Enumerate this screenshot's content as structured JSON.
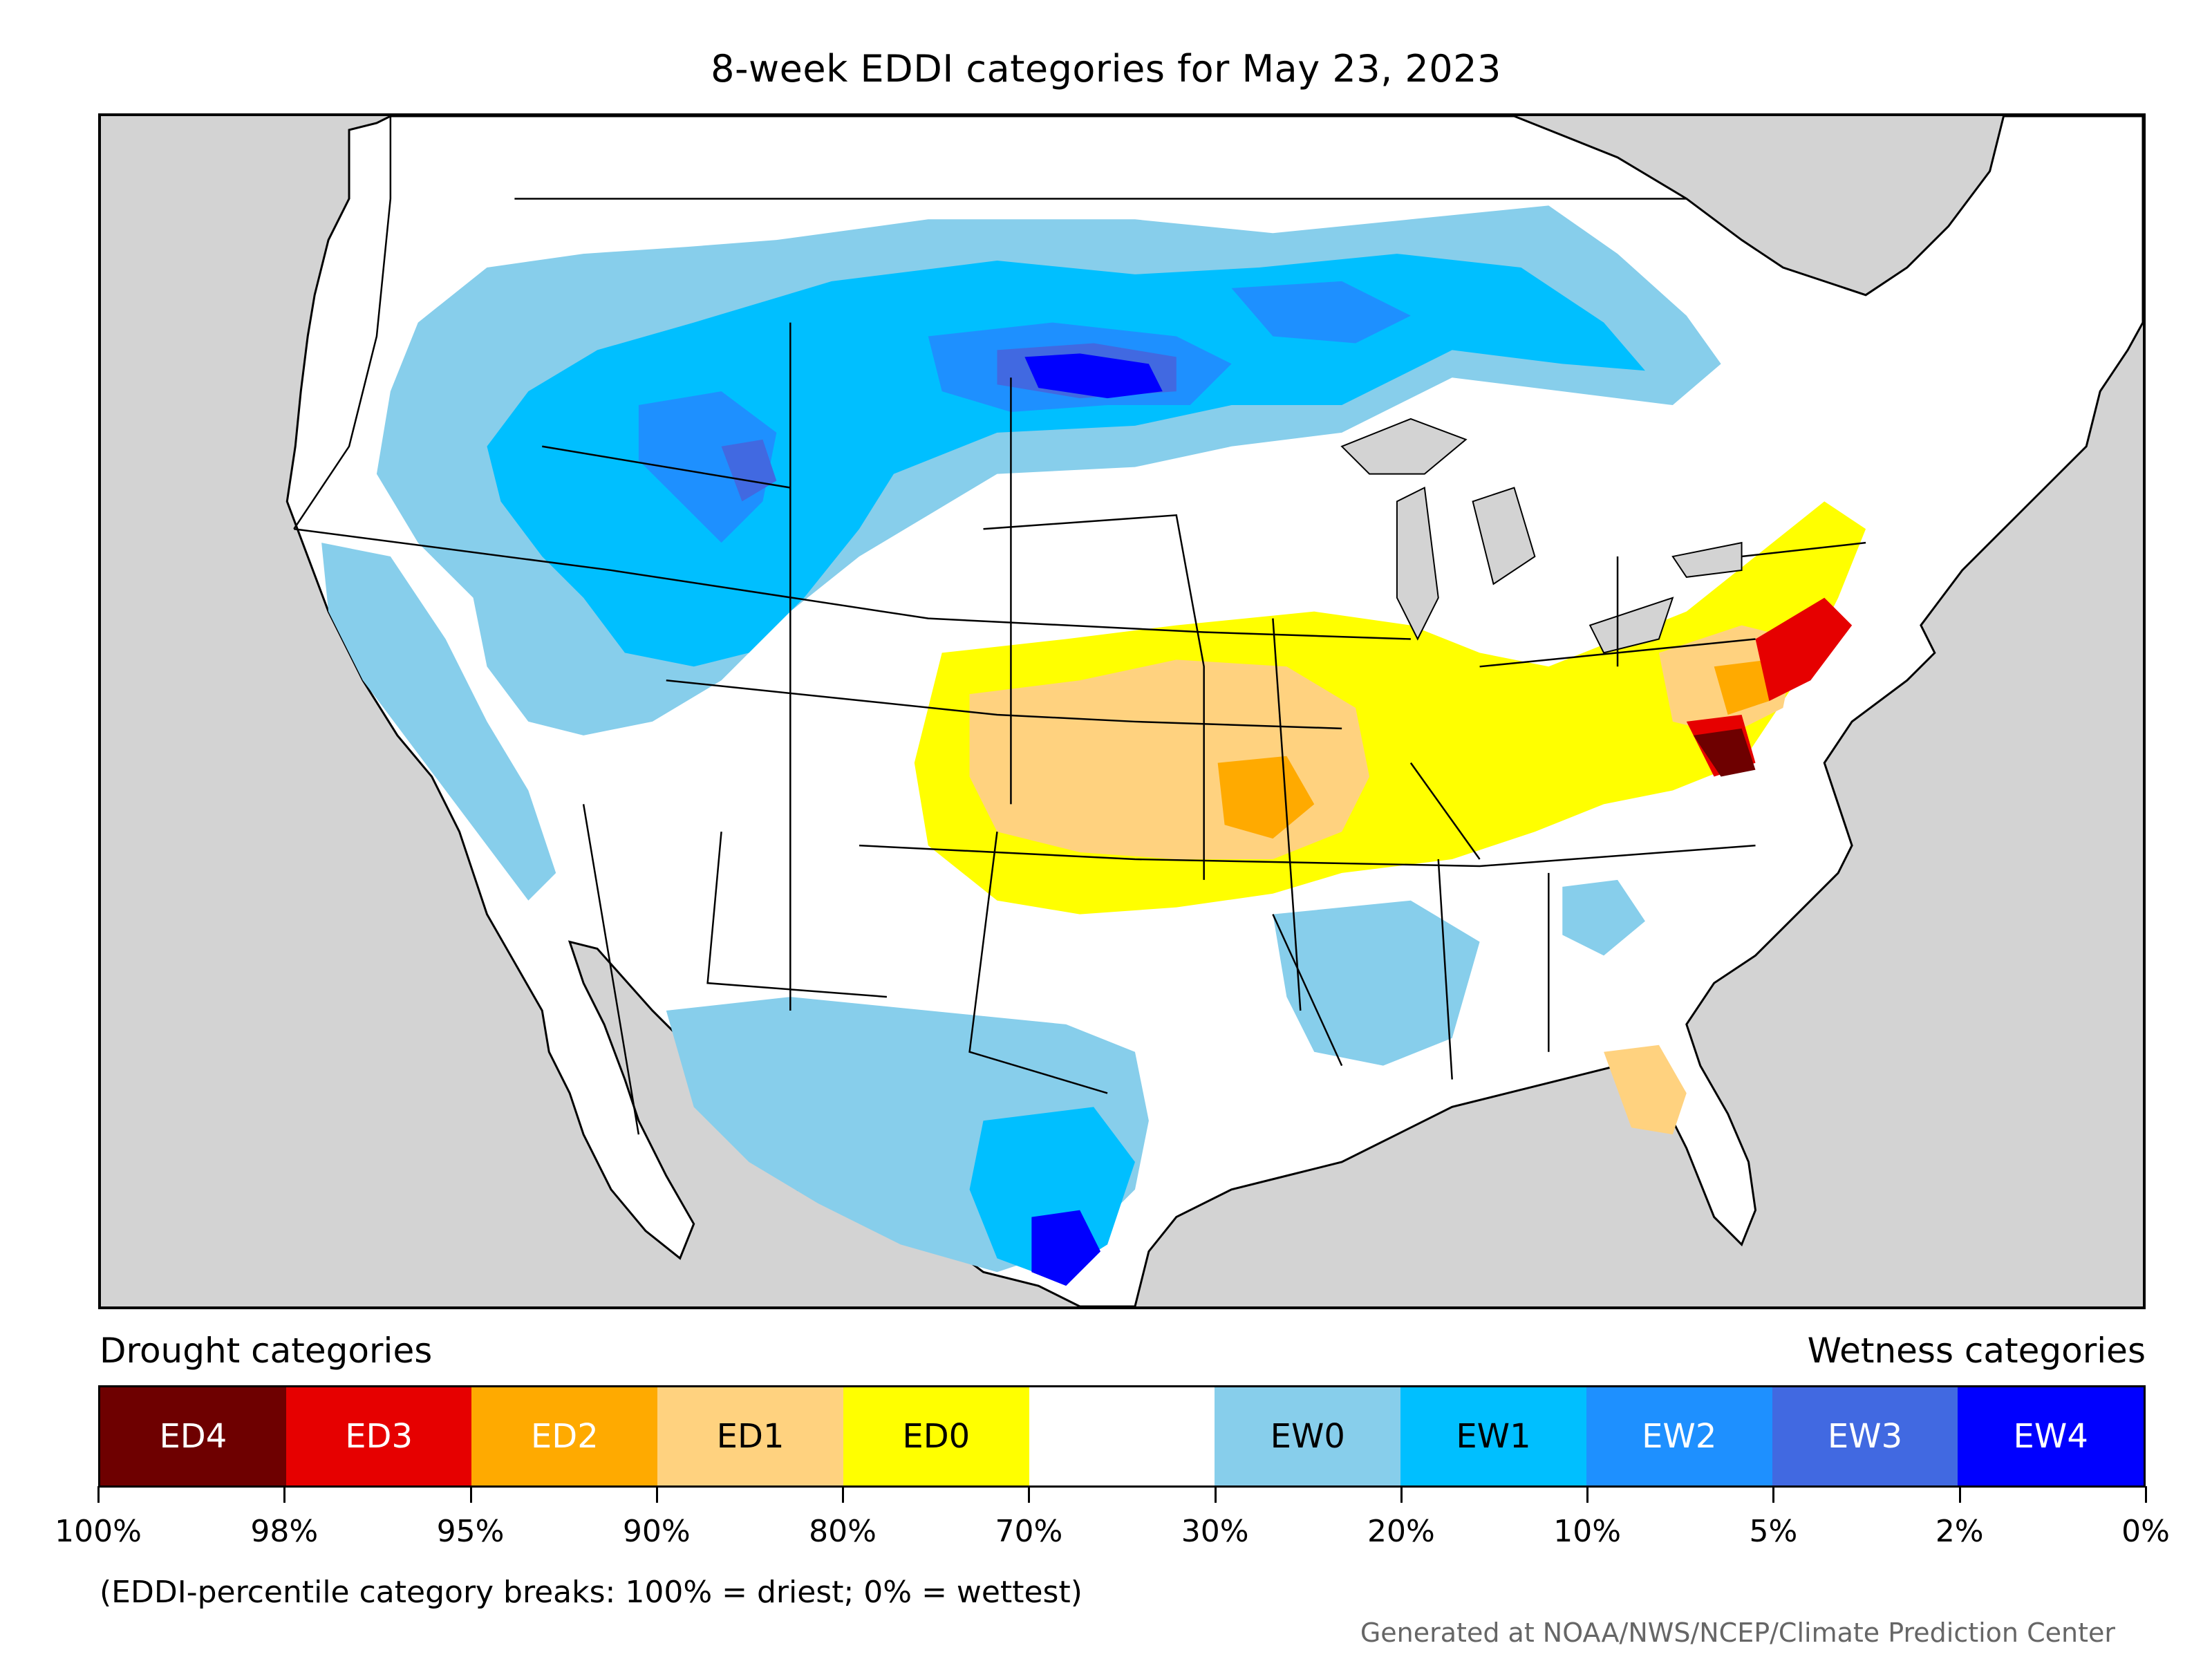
{
  "title": "8-week EDDI categories for May 23, 2023",
  "map": {
    "region": "contiguous United States",
    "colors": {
      "background": "#d3d3d3",
      "land": "#ffffff",
      "borders": "#000000"
    },
    "patterns": [
      {
        "region": "Northern Plains (ND/SD/MN)",
        "category": "EW4",
        "color": "#0000ff"
      },
      {
        "region": "Northern Rockies & Pacific Northwest",
        "category": "EW2",
        "color": "#1e90ff"
      },
      {
        "region": "South Texas coast",
        "category": "EW4",
        "color": "#0000ff"
      },
      {
        "region": "Kansas / Missouri / Iowa",
        "category": "ED1",
        "color": "#ffd27f"
      },
      {
        "region": "Virginia / Maryland",
        "category": "ED4",
        "color": "#6e0000"
      },
      {
        "region": "New York / New England coast",
        "category": "ED3",
        "color": "#e60000"
      },
      {
        "region": "Ohio Valley & Great Lakes",
        "category": "ED0",
        "color": "#ffff00"
      },
      {
        "region": "Florida peninsula",
        "category": "ED1",
        "color": "#ffd27f"
      }
    ]
  },
  "legend": {
    "drought_label": "Drought categories",
    "wetness_label": "Wetness categories",
    "categories": [
      {
        "label": "ED4",
        "color": "#6e0000",
        "text_color": "#ffffff"
      },
      {
        "label": "ED3",
        "color": "#e60000",
        "text_color": "#ffffff"
      },
      {
        "label": "ED2",
        "color": "#ffaa00",
        "text_color": "#ffffff"
      },
      {
        "label": "ED1",
        "color": "#ffd27f",
        "text_color": "#000000"
      },
      {
        "label": "ED0",
        "color": "#ffff00",
        "text_color": "#000000"
      },
      {
        "label": "",
        "color": "#ffffff",
        "text_color": "#000000"
      },
      {
        "label": "EW0",
        "color": "#87ceeb",
        "text_color": "#000000"
      },
      {
        "label": "EW1",
        "color": "#00bfff",
        "text_color": "#000000"
      },
      {
        "label": "EW2",
        "color": "#1e90ff",
        "text_color": "#ffffff"
      },
      {
        "label": "EW3",
        "color": "#4169e1",
        "text_color": "#ffffff"
      },
      {
        "label": "EW4",
        "color": "#0000ff",
        "text_color": "#ffffff"
      }
    ],
    "ticks": [
      "100%",
      "98%",
      "95%",
      "90%",
      "80%",
      "70%",
      "30%",
      "20%",
      "10%",
      "5%",
      "2%",
      "0%"
    ]
  },
  "footnote": "(EDDI-percentile category breaks: 100% = driest; 0% = wettest)",
  "credit": "Generated at NOAA/NWS/NCEP/Climate Prediction Center"
}
